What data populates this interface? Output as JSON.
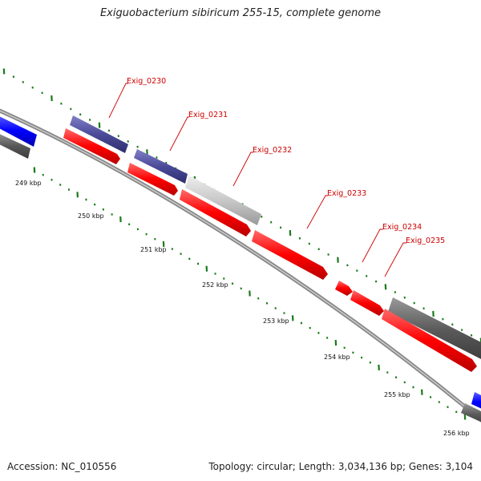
{
  "title": "Exiguobacterium sibiricum 255-15, complete genome",
  "accession": "Accession: NC_010556",
  "topology": "Topology: circular; Length: 3,034,136 bp; Genes: 3,104",
  "ticks": [
    "249 kbp",
    "250 kbp",
    "251 kbp",
    "252 kbp",
    "253 kbp",
    "254 kbp",
    "255 kbp",
    "256 kbp"
  ],
  "genes": [
    "Exig_0230",
    "Exig_0231",
    "Exig_0232",
    "Exig_0233",
    "Exig_0234",
    "Exig_0235"
  ],
  "colors": {
    "backbone": "#8a8a8a",
    "cds_red": "#ff0000",
    "slate": "#4b4b9a",
    "gray_feature": "#5a5a5a",
    "light_gray": "#c8c8c8",
    "blue": "#0000ff",
    "tick_green": "#1a7a1a",
    "label_red": "#cc0000"
  }
}
